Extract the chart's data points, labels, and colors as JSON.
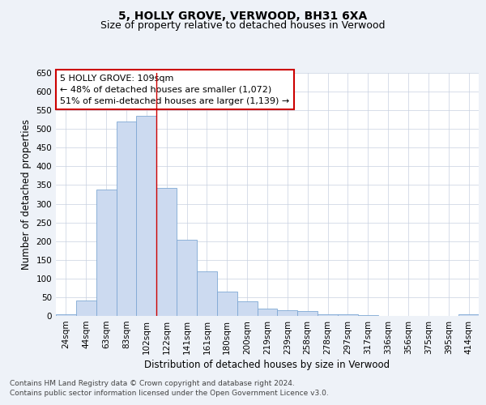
{
  "title1": "5, HOLLY GROVE, VERWOOD, BH31 6XA",
  "title2": "Size of property relative to detached houses in Verwood",
  "xlabel": "Distribution of detached houses by size in Verwood",
  "ylabel": "Number of detached properties",
  "categories": [
    "24sqm",
    "44sqm",
    "63sqm",
    "83sqm",
    "102sqm",
    "122sqm",
    "141sqm",
    "161sqm",
    "180sqm",
    "200sqm",
    "219sqm",
    "239sqm",
    "258sqm",
    "278sqm",
    "297sqm",
    "317sqm",
    "336sqm",
    "356sqm",
    "375sqm",
    "395sqm",
    "414sqm"
  ],
  "values": [
    5,
    42,
    339,
    520,
    535,
    342,
    204,
    120,
    65,
    38,
    20,
    15,
    12,
    5,
    4,
    3,
    1,
    0,
    0,
    1,
    4
  ],
  "bar_color": "#ccdaf0",
  "bar_edge_color": "#7fa8d4",
  "red_line_after_bar": 4,
  "annotation_text_line1": "5 HOLLY GROVE: 109sqm",
  "annotation_text_line2": "← 48% of detached houses are smaller (1,072)",
  "annotation_text_line3": "51% of semi-detached houses are larger (1,139) →",
  "annotation_box_color": "#ffffff",
  "annotation_box_edge": "#cc0000",
  "footer1": "Contains HM Land Registry data © Crown copyright and database right 2024.",
  "footer2": "Contains public sector information licensed under the Open Government Licence v3.0.",
  "ylim": [
    0,
    650
  ],
  "yticks": [
    0,
    50,
    100,
    150,
    200,
    250,
    300,
    350,
    400,
    450,
    500,
    550,
    600,
    650
  ],
  "bg_color": "#eef2f8",
  "plot_bg": "#ffffff",
  "title1_fontsize": 10,
  "title2_fontsize": 9,
  "axis_label_fontsize": 8.5,
  "tick_fontsize": 7.5,
  "annotation_fontsize": 8,
  "footer_fontsize": 6.5,
  "grid_color": "#c8d0e0"
}
